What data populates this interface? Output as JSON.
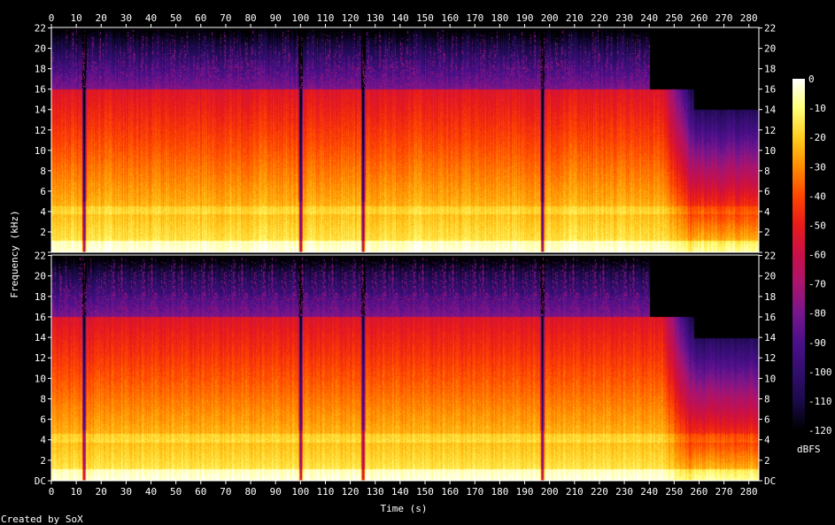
{
  "chart_data": {
    "type": "heatmap",
    "title": "",
    "xlabel": "Time (s)",
    "ylabel": "Frequency (kHz)",
    "xlim": [
      0,
      284
    ],
    "ylim": [
      0,
      22.05
    ],
    "x_ticks": [
      0,
      10,
      20,
      30,
      40,
      50,
      60,
      70,
      80,
      90,
      100,
      110,
      120,
      130,
      140,
      150,
      160,
      170,
      180,
      190,
      200,
      210,
      220,
      230,
      240,
      250,
      260,
      270,
      280
    ],
    "y_tick_labels": [
      "DC",
      "2",
      "4",
      "6",
      "8",
      "10",
      "12",
      "14",
      "16",
      "18",
      "20",
      "22"
    ],
    "channels": [
      "channel-1",
      "channel-2"
    ],
    "colorbar": {
      "label": "dBFS",
      "ticks": [
        0,
        -10,
        -20,
        -30,
        -40,
        -50,
        -60,
        -70,
        -80,
        -90,
        -100,
        -110,
        -120
      ],
      "range": [
        -120,
        0
      ]
    },
    "features": {
      "lowpass_cutoff_khz": 16,
      "fade_out_start_s": 245,
      "fade_out_end_s": 258,
      "tail_cutoff_khz": 14,
      "gaps_s": [
        13,
        100,
        125,
        197
      ]
    }
  },
  "footer": {
    "credit": "Created by SoX"
  },
  "colors": {
    "background": "#000000",
    "palette": [
      "#000000",
      "#1a0a4a",
      "#4b0f8a",
      "#8a1a8a",
      "#c01048",
      "#e81a1a",
      "#ff5a00",
      "#ff9a00",
      "#ffd020",
      "#ffff80",
      "#ffffff"
    ]
  }
}
